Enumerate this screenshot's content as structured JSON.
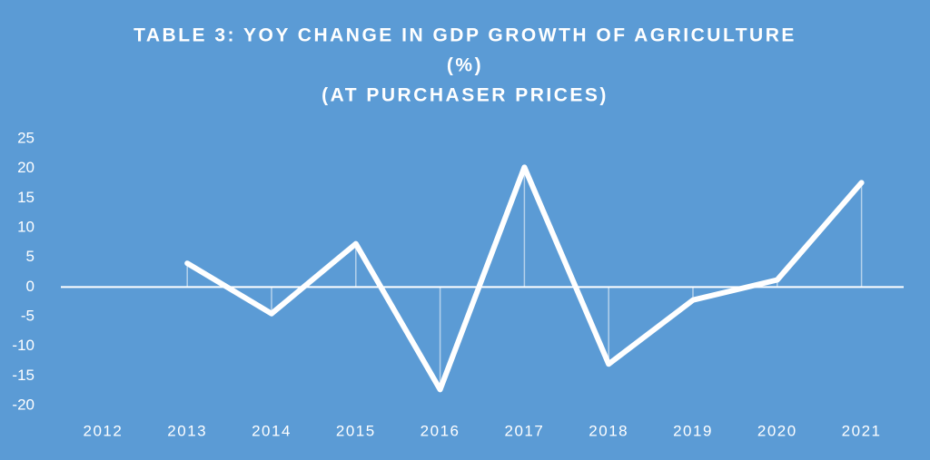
{
  "chart_data": {
    "type": "line",
    "title": [
      "TABLE 3: YOY CHANGE IN GDP GROWTH OF AGRICULTURE",
      "(%)",
      "(AT PURCHASER PRICES)"
    ],
    "categories": [
      "2012",
      "2013",
      "2014",
      "2015",
      "2016",
      "2017",
      "2018",
      "2019",
      "2020",
      "2021"
    ],
    "values": [
      null,
      4,
      -4.5,
      7.3,
      -17.3,
      20.2,
      -13,
      -2.2,
      1.2,
      17.6
    ],
    "color": "#ffffff",
    "background": "#5b9bd5",
    "ylim": [
      -20,
      25
    ],
    "yticks": [
      -20,
      -15,
      -10,
      -5,
      0,
      5,
      10,
      15,
      20,
      25
    ],
    "drop_lines": true,
    "grid": false
  }
}
